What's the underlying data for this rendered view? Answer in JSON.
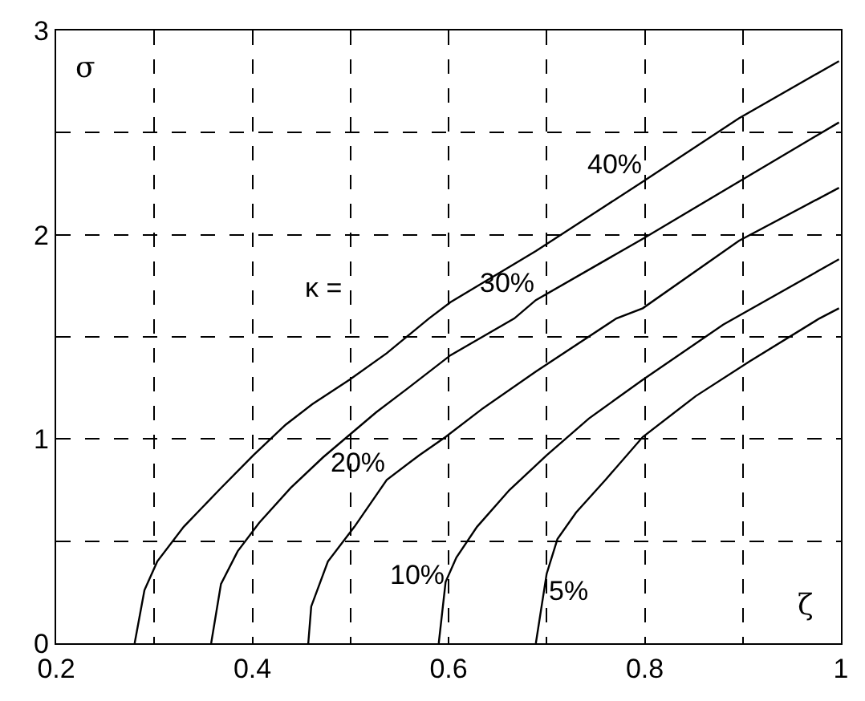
{
  "chart_data": {
    "type": "line",
    "xlabel": "ζ",
    "ylabel": "σ",
    "annotations": [
      "κ ="
    ],
    "xlim": [
      0.2,
      1
    ],
    "ylim": [
      0,
      3
    ],
    "xticks": [
      0.2,
      0.4,
      0.6,
      0.8,
      1
    ],
    "yticks": [
      0,
      1,
      2,
      3
    ],
    "grid": true,
    "legend": false,
    "marker": "none",
    "line_style": "solid",
    "series": [
      {
        "name": "40%",
        "color": "#000000",
        "x": [
          0.28,
          0.29,
          0.303,
          0.33,
          0.368,
          0.401,
          0.434,
          0.461,
          0.499,
          0.537,
          0.58,
          0.602,
          0.689,
          0.798,
          0.896,
          0.998
        ],
        "values": [
          0,
          0.26,
          0.4,
          0.57,
          0.76,
          0.92,
          1.07,
          1.17,
          1.29,
          1.42,
          1.59,
          1.67,
          1.92,
          2.26,
          2.57,
          2.85
        ]
      },
      {
        "name": "30%",
        "color": "#000000",
        "x": [
          0.358,
          0.368,
          0.385,
          0.407,
          0.439,
          0.472,
          0.499,
          0.526,
          0.559,
          0.602,
          0.667,
          0.689,
          0.798,
          0.896,
          0.998
        ],
        "values": [
          0,
          0.29,
          0.45,
          0.59,
          0.76,
          0.91,
          1.02,
          1.13,
          1.25,
          1.41,
          1.59,
          1.68,
          1.98,
          2.26,
          2.55
        ]
      },
      {
        "name": "20%",
        "color": "#000000",
        "x": [
          0.457,
          0.46,
          0.477,
          0.504,
          0.537,
          0.57,
          0.597,
          0.635,
          0.689,
          0.771,
          0.798,
          0.896,
          0.998
        ],
        "values": [
          0,
          0.18,
          0.4,
          0.57,
          0.8,
          0.92,
          1.01,
          1.15,
          1.33,
          1.59,
          1.64,
          1.97,
          2.23
        ]
      },
      {
        "name": "10%",
        "color": "#000000",
        "x": [
          0.59,
          0.597,
          0.608,
          0.629,
          0.662,
          0.7,
          0.743,
          0.798,
          0.88,
          0.998
        ],
        "values": [
          0,
          0.3,
          0.42,
          0.57,
          0.75,
          0.92,
          1.1,
          1.29,
          1.56,
          1.88
        ]
      },
      {
        "name": "5%",
        "color": "#000000",
        "x": [
          0.689,
          0.7,
          0.711,
          0.73,
          0.76,
          0.798,
          0.852,
          0.907,
          0.978,
          0.998
        ],
        "values": [
          0,
          0.34,
          0.51,
          0.64,
          0.8,
          1.01,
          1.21,
          1.38,
          1.59,
          1.64
        ]
      }
    ]
  }
}
